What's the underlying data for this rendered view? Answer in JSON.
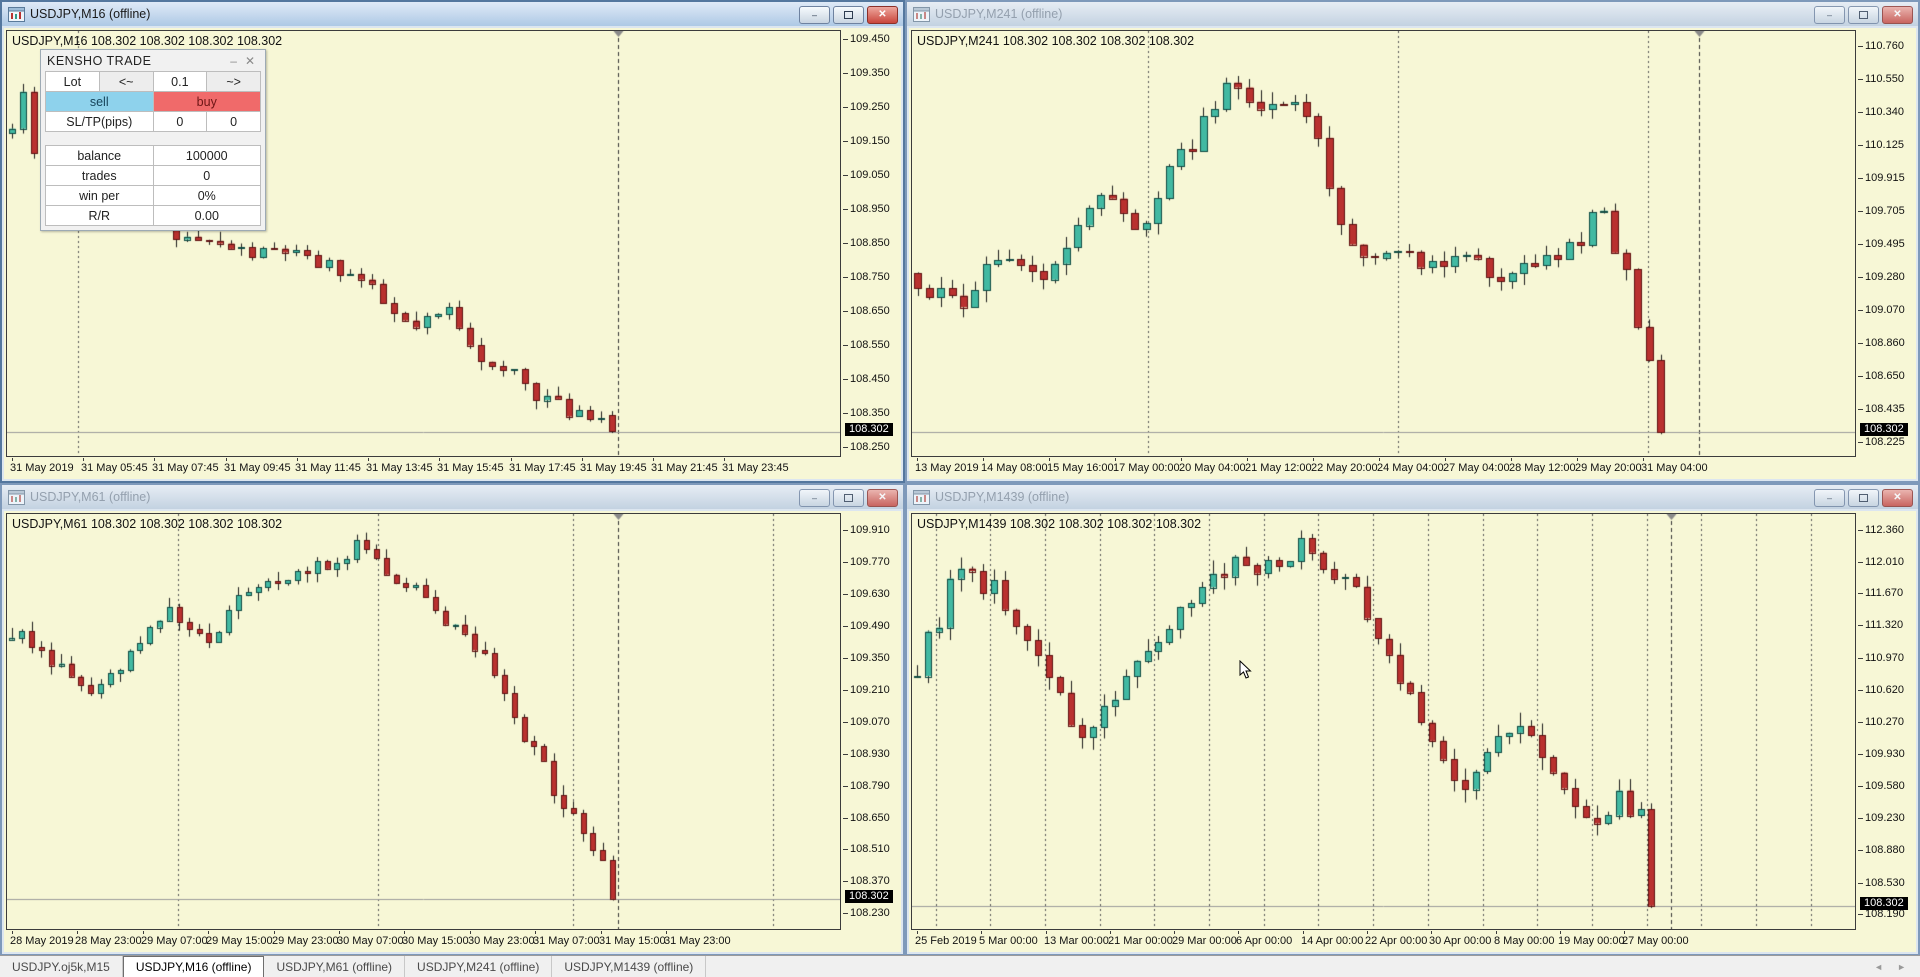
{
  "icons": {
    "window_icon": "chart-window-icon",
    "minimize": "–",
    "restore": "restore-box",
    "close": "✕",
    "panel_minimize": "–",
    "panel_close": "✕",
    "tab_scroll_left": "◄",
    "tab_scroll_right": "►"
  },
  "trade_panel": {
    "title": "KENSHO  TRADE",
    "lot_label": "Lot",
    "lot_decrease": "<~",
    "lot_value": "0.1",
    "lot_increase": "~>",
    "sell_label": "sell",
    "buy_label": "buy",
    "sltp_label": "SL/TP(pips)",
    "sl_value": "0",
    "tp_value": "0",
    "stats": [
      {
        "label": "balance",
        "value": "100000"
      },
      {
        "label": "trades",
        "value": "0"
      },
      {
        "label": "win per",
        "value": "0%"
      },
      {
        "label": "R/R",
        "value": "0.00"
      }
    ]
  },
  "tab_bar": {
    "tabs": [
      {
        "label": "USDJPY.oj5k,M15",
        "active": false
      },
      {
        "label": "USDJPY,M16 (offline)",
        "active": true
      },
      {
        "label": "USDJPY,M61 (offline)",
        "active": false
      },
      {
        "label": "USDJPY,M241 (offline)",
        "active": false
      },
      {
        "label": "USDJPY,M1439 (offline)",
        "active": false
      }
    ]
  },
  "colors": {
    "chart_bg": "#f7f7d6",
    "bull": "#42b9a2",
    "bull_border": "#0e4a42",
    "bear": "#b9312f",
    "bear_border": "#5e1010",
    "wick": "#1a1a1a",
    "separator": "#555555",
    "current_line": "#9a9a9a",
    "price_label_bg": "#000000",
    "price_label_fg": "#ffffff"
  },
  "windows": [
    {
      "title": "USDJPY,M16 (offline)",
      "header": "USDJPY,M16  108.302 108.302 108.302 108.302",
      "active": true,
      "current_price": "108.302",
      "current_value": 108.302,
      "price_top": 109.48,
      "price_bottom": 108.23,
      "price_ticks": [
        "109.450",
        "109.350",
        "109.250",
        "109.150",
        "109.050",
        "108.950",
        "108.850",
        "108.750",
        "108.650",
        "108.550",
        "108.450",
        "108.350",
        "108.250"
      ],
      "time_labels": [
        "31 May 2019",
        "31 May 05:45",
        "31 May 07:45",
        "31 May 09:45",
        "31 May 11:45",
        "31 May 13:45",
        "31 May 15:45",
        "31 May 17:45",
        "31 May 19:45",
        "31 May 21:45",
        "31 May 23:45"
      ],
      "time_span": 0.855,
      "separators": [
        0.085
      ],
      "end_line": 0.733,
      "candles": {
        "count": 56,
        "end": 0.733,
        "seed": 11,
        "noise": 0.03,
        "anchors": [
          [
            0.005,
            109.18
          ],
          [
            0.02,
            109.3
          ],
          [
            0.04,
            109.05
          ],
          [
            0.07,
            109.02
          ],
          [
            0.1,
            108.98
          ],
          [
            0.14,
            108.96
          ],
          [
            0.18,
            108.92
          ],
          [
            0.21,
            108.88
          ],
          [
            0.235,
            108.86
          ],
          [
            0.27,
            108.84
          ],
          [
            0.3,
            108.82
          ],
          [
            0.33,
            108.84
          ],
          [
            0.36,
            108.8
          ],
          [
            0.4,
            108.78
          ],
          [
            0.43,
            108.74
          ],
          [
            0.45,
            108.68
          ],
          [
            0.47,
            108.63
          ],
          [
            0.49,
            108.6
          ],
          [
            0.51,
            108.63
          ],
          [
            0.53,
            108.66
          ],
          [
            0.55,
            108.6
          ],
          [
            0.57,
            108.52
          ],
          [
            0.59,
            108.46
          ],
          [
            0.61,
            108.48
          ],
          [
            0.63,
            108.42
          ],
          [
            0.65,
            108.4
          ],
          [
            0.67,
            108.36
          ],
          [
            0.69,
            108.37
          ],
          [
            0.71,
            108.35
          ],
          [
            0.725,
            108.33
          ],
          [
            0.733,
            108.31
          ]
        ]
      }
    },
    {
      "title": "USDJPY,M241 (offline)",
      "header": "USDJPY,M241  108.302 108.302 108.302 108.302",
      "active": false,
      "current_price": "108.302",
      "current_value": 108.302,
      "price_top": 110.87,
      "price_bottom": 108.15,
      "price_ticks": [
        "110.760",
        "110.550",
        "110.340",
        "110.125",
        "109.915",
        "109.705",
        "109.495",
        "109.280",
        "109.070",
        "108.860",
        "108.650",
        "108.435",
        "108.225"
      ],
      "time_labels": [
        "13 May 2019",
        "14 May 08:00",
        "15 May 16:00",
        "17 May 00:00",
        "20 May 04:00",
        "21 May 12:00",
        "22 May 20:00",
        "24 May 04:00",
        "27 May 04:00",
        "28 May 12:00",
        "29 May 20:00",
        "31 May 04:00"
      ],
      "time_span": 0.77,
      "separators": [
        0.25,
        0.515,
        0.78
      ],
      "end_line": 0.835,
      "candles": {
        "count": 66,
        "end": 0.8,
        "seed": 23,
        "noise": 0.085,
        "anchors": [
          [
            0.0,
            109.32
          ],
          [
            0.02,
            109.18
          ],
          [
            0.04,
            109.26
          ],
          [
            0.06,
            109.12
          ],
          [
            0.08,
            109.4
          ],
          [
            0.1,
            109.48
          ],
          [
            0.12,
            109.3
          ],
          [
            0.14,
            109.22
          ],
          [
            0.16,
            109.45
          ],
          [
            0.18,
            109.62
          ],
          [
            0.2,
            109.78
          ],
          [
            0.22,
            109.72
          ],
          [
            0.24,
            109.6
          ],
          [
            0.26,
            109.85
          ],
          [
            0.28,
            110.05
          ],
          [
            0.3,
            110.18
          ],
          [
            0.32,
            110.4
          ],
          [
            0.335,
            110.6
          ],
          [
            0.35,
            110.52
          ],
          [
            0.37,
            110.42
          ],
          [
            0.39,
            110.35
          ],
          [
            0.41,
            110.38
          ],
          [
            0.43,
            110.18
          ],
          [
            0.445,
            109.85
          ],
          [
            0.46,
            109.6
          ],
          [
            0.48,
            109.45
          ],
          [
            0.5,
            109.38
          ],
          [
            0.52,
            109.48
          ],
          [
            0.54,
            109.42
          ],
          [
            0.56,
            109.4
          ],
          [
            0.58,
            109.48
          ],
          [
            0.6,
            109.42
          ],
          [
            0.62,
            109.3
          ],
          [
            0.64,
            109.28
          ],
          [
            0.66,
            109.42
          ],
          [
            0.68,
            109.38
          ],
          [
            0.7,
            109.48
          ],
          [
            0.715,
            109.6
          ],
          [
            0.73,
            109.72
          ],
          [
            0.745,
            109.5
          ],
          [
            0.76,
            109.25
          ],
          [
            0.775,
            108.85
          ],
          [
            0.79,
            108.55
          ],
          [
            0.8,
            108.36
          ]
        ]
      }
    },
    {
      "title": "USDJPY,M61 (offline)",
      "header": "USDJPY,M61  108.302 108.302 108.302 108.302",
      "active": false,
      "current_price": "108.302",
      "current_value": 108.302,
      "price_top": 109.99,
      "price_bottom": 108.17,
      "price_ticks": [
        "109.910",
        "109.770",
        "109.630",
        "109.490",
        "109.350",
        "109.210",
        "109.070",
        "108.930",
        "108.790",
        "108.650",
        "108.510",
        "108.370",
        "108.230"
      ],
      "time_labels": [
        "28 May 2019",
        "28 May 23:00",
        "29 May 07:00",
        "29 May 15:00",
        "29 May 23:00",
        "30 May 07:00",
        "30 May 15:00",
        "30 May 23:00",
        "31 May 07:00",
        "31 May 15:00",
        "31 May 23:00"
      ],
      "time_span": 0.785,
      "separators": [
        0.205,
        0.445,
        0.68,
        0.92
      ],
      "end_line": 0.733,
      "candles": {
        "count": 62,
        "end": 0.733,
        "seed": 37,
        "noise": 0.048,
        "anchors": [
          [
            0.0,
            109.44
          ],
          [
            0.02,
            109.46
          ],
          [
            0.04,
            109.4
          ],
          [
            0.06,
            109.32
          ],
          [
            0.08,
            109.26
          ],
          [
            0.1,
            109.22
          ],
          [
            0.12,
            109.24
          ],
          [
            0.14,
            109.32
          ],
          [
            0.16,
            109.42
          ],
          [
            0.18,
            109.5
          ],
          [
            0.2,
            109.56
          ],
          [
            0.22,
            109.48
          ],
          [
            0.24,
            109.42
          ],
          [
            0.26,
            109.52
          ],
          [
            0.28,
            109.62
          ],
          [
            0.3,
            109.68
          ],
          [
            0.32,
            109.72
          ],
          [
            0.34,
            109.74
          ],
          [
            0.36,
            109.76
          ],
          [
            0.38,
            109.76
          ],
          [
            0.4,
            109.8
          ],
          [
            0.425,
            109.88
          ],
          [
            0.44,
            109.8
          ],
          [
            0.46,
            109.72
          ],
          [
            0.475,
            109.68
          ],
          [
            0.49,
            109.72
          ],
          [
            0.505,
            109.62
          ],
          [
            0.52,
            109.56
          ],
          [
            0.54,
            109.48
          ],
          [
            0.56,
            109.4
          ],
          [
            0.58,
            109.32
          ],
          [
            0.6,
            109.18
          ],
          [
            0.62,
            109.02
          ],
          [
            0.64,
            108.9
          ],
          [
            0.66,
            108.76
          ],
          [
            0.68,
            108.66
          ],
          [
            0.695,
            108.58
          ],
          [
            0.71,
            108.48
          ],
          [
            0.72,
            108.4
          ],
          [
            0.733,
            108.31
          ]
        ]
      }
    },
    {
      "title": "USDJPY,M1439 (offline)",
      "header": "USDJPY,M1439  108.302 108.302 108.302 108.302",
      "active": false,
      "current_price": "108.302",
      "current_value": 108.302,
      "price_top": 112.55,
      "price_bottom": 108.05,
      "price_ticks": [
        "112.360",
        "112.010",
        "111.670",
        "111.320",
        "110.970",
        "110.620",
        "110.270",
        "109.930",
        "109.580",
        "109.230",
        "108.880",
        "108.530",
        "108.190"
      ],
      "time_labels": [
        "25 Feb 2019",
        "5 Mar 00:00",
        "13 Mar 00:00",
        "21 Mar 00:00",
        "29 Mar 00:00",
        "6 Apr 00:00",
        "14 Apr 00:00",
        "22 Apr 00:00",
        "30 Apr 00:00",
        "8 May 00:00",
        "19 May 00:00",
        "27 May 00:00"
      ],
      "time_span": 0.75,
      "separators": [
        0.025,
        0.083,
        0.141,
        0.199,
        0.257,
        0.315,
        0.373,
        0.431,
        0.489,
        0.547,
        0.605,
        0.663,
        0.721,
        0.779,
        0.837,
        0.895,
        0.953
      ],
      "end_line": 0.805,
      "candles": {
        "count": 68,
        "end": 0.79,
        "seed": 53,
        "noise": 0.16,
        "anchors": [
          [
            0.0,
            110.78
          ],
          [
            0.015,
            111.1
          ],
          [
            0.03,
            111.45
          ],
          [
            0.045,
            111.85
          ],
          [
            0.06,
            111.95
          ],
          [
            0.075,
            111.8
          ],
          [
            0.09,
            111.7
          ],
          [
            0.105,
            111.5
          ],
          [
            0.12,
            111.3
          ],
          [
            0.135,
            111.05
          ],
          [
            0.15,
            110.8
          ],
          [
            0.165,
            110.4
          ],
          [
            0.18,
            110.05
          ],
          [
            0.195,
            110.2
          ],
          [
            0.21,
            110.5
          ],
          [
            0.225,
            110.75
          ],
          [
            0.24,
            110.95
          ],
          [
            0.255,
            111.15
          ],
          [
            0.27,
            111.35
          ],
          [
            0.285,
            111.55
          ],
          [
            0.3,
            111.7
          ],
          [
            0.315,
            111.85
          ],
          [
            0.33,
            111.95
          ],
          [
            0.345,
            112.0
          ],
          [
            0.36,
            112.0
          ],
          [
            0.375,
            112.05
          ],
          [
            0.39,
            112.05
          ],
          [
            0.405,
            112.1
          ],
          [
            0.42,
            112.25
          ],
          [
            0.435,
            111.95
          ],
          [
            0.45,
            111.85
          ],
          [
            0.465,
            111.9
          ],
          [
            0.48,
            111.55
          ],
          [
            0.495,
            111.2
          ],
          [
            0.51,
            110.9
          ],
          [
            0.525,
            110.6
          ],
          [
            0.54,
            110.35
          ],
          [
            0.555,
            110.05
          ],
          [
            0.57,
            109.85
          ],
          [
            0.585,
            109.65
          ],
          [
            0.6,
            109.7
          ],
          [
            0.615,
            109.95
          ],
          [
            0.63,
            110.15
          ],
          [
            0.645,
            110.35
          ],
          [
            0.66,
            110.15
          ],
          [
            0.675,
            109.9
          ],
          [
            0.69,
            109.55
          ],
          [
            0.705,
            109.35
          ],
          [
            0.72,
            109.22
          ],
          [
            0.735,
            109.35
          ],
          [
            0.75,
            109.48
          ],
          [
            0.765,
            109.38
          ],
          [
            0.78,
            109.28
          ],
          [
            0.79,
            108.4
          ]
        ]
      }
    }
  ]
}
